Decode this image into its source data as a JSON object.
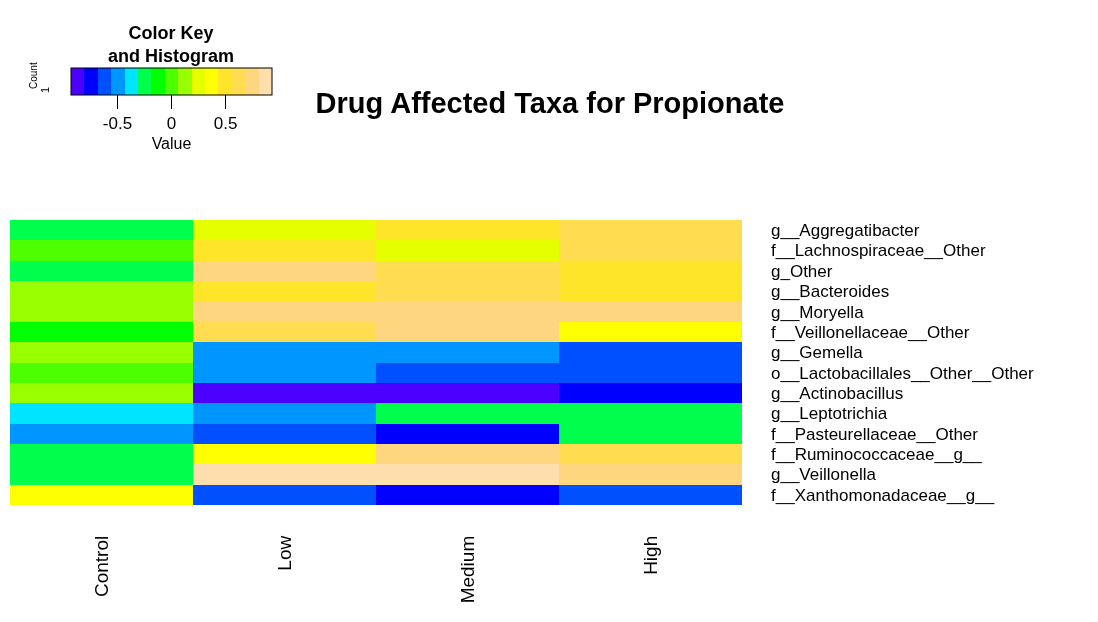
{
  "chart_data": {
    "type": "heatmap",
    "title": "Drug Affected Taxa for Propionate",
    "categories": [
      "Control",
      "Low",
      "Medium",
      "High"
    ],
    "y_categories": [
      "g__Aggregatibacter",
      "f__Lachnospiraceae__Other",
      "g_Other",
      "g__Bacteroides",
      "g__Moryella",
      "f__Veillonellaceae__Other",
      "g__Gemella",
      "o__Lactobacillales__Other__Other",
      "g__Actinobacillus",
      "g__Leptotrichia",
      "f__Pasteurellaceae__Other",
      "f__Ruminococcaceae__g__",
      "g__Veillonella",
      "f__Xanthomonadaceae__g__"
    ],
    "cells": [
      [
        -0.2,
        0.2,
        0.5,
        0.6
      ],
      [
        0,
        0.5,
        0.2,
        0.6
      ],
      [
        -0.2,
        0.7,
        0.6,
        0.5
      ],
      [
        0.1,
        0.5,
        0.6,
        0.5
      ],
      [
        0.1,
        0.7,
        0.7,
        0.7
      ],
      [
        -0.1,
        0.6,
        0.7,
        0.4
      ],
      [
        0.1,
        -0.5,
        -0.5,
        -0.6
      ],
      [
        0,
        -0.5,
        -0.6,
        -0.6
      ],
      [
        0.1,
        -0.9,
        -0.9,
        -0.7
      ],
      [
        -0.4,
        -0.5,
        -0.2,
        -0.2
      ],
      [
        -0.5,
        -0.6,
        -0.7,
        -0.2
      ],
      [
        -0.2,
        0.4,
        0.7,
        0.6
      ],
      [
        -0.2,
        0.9,
        0.9,
        0.7
      ],
      [
        0.4,
        -0.6,
        -0.7,
        -0.6
      ]
    ],
    "colors": [
      "#4b00ff",
      "#0000ff",
      "#0050ff",
      "#0096ff",
      "#00e5ff",
      "#00ff4d",
      "#00ff00",
      "#4dff00",
      "#99ff00",
      "#e5ff00",
      "#ffff00",
      "#ffe52a",
      "#ffdc50",
      "#ffd680",
      "#ffdead"
    ],
    "clim": [
      -0.93,
      0.93
    ],
    "cticks": [
      -0.5,
      0,
      0.5
    ],
    "clabel": "Value",
    "annotations": [
      "Color Key\nand Histogram",
      "Count",
      "1"
    ]
  }
}
